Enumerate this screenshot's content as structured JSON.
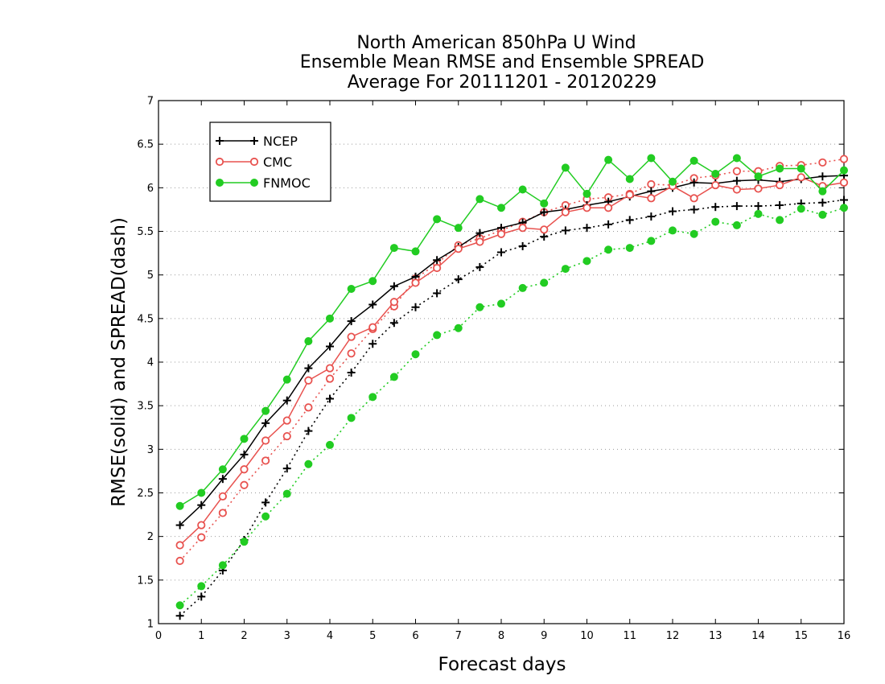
{
  "chart_data": {
    "type": "line",
    "title": [
      "North American 850hPa U Wind",
      "Ensemble Mean RMSE and Ensemble SPREAD",
      "Average For 20111201 - 20120229"
    ],
    "xlabel": "Forecast days",
    "ylabel": "RMSE(solid) and SPREAD(dash)",
    "xlim": [
      0,
      16
    ],
    "ylim": [
      1,
      7
    ],
    "xticks": [
      "0",
      "1",
      "2",
      "3",
      "4",
      "5",
      "6",
      "7",
      "8",
      "9",
      "10",
      "11",
      "12",
      "13",
      "14",
      "15",
      "16"
    ],
    "yticks": [
      "1",
      "1.5",
      "2",
      "2.5",
      "3",
      "3.5",
      "4",
      "4.5",
      "5",
      "5.5",
      "6",
      "6.5",
      "7"
    ],
    "grid": true,
    "legend_position": "top-left",
    "x": [
      0.5,
      1,
      1.5,
      2,
      2.5,
      3,
      3.5,
      4,
      4.5,
      5,
      5.5,
      6,
      6.5,
      7,
      7.5,
      8,
      8.5,
      9,
      9.5,
      10,
      10.5,
      11,
      11.5,
      12,
      12.5,
      13,
      13.5,
      14,
      14.5,
      15,
      15.5,
      16
    ],
    "series": [
      {
        "name": "NCEP",
        "color": "#000000",
        "marker": "plus",
        "rmse": [
          2.13,
          2.36,
          2.66,
          2.94,
          3.3,
          3.56,
          3.93,
          4.18,
          4.47,
          4.66,
          4.87,
          4.98,
          5.17,
          5.32,
          5.48,
          5.54,
          5.6,
          5.72,
          5.75,
          5.8,
          5.84,
          5.9,
          5.96,
          6.0,
          6.06,
          6.05,
          6.08,
          6.09,
          6.07,
          6.1,
          6.13,
          6.14
        ],
        "spread": [
          1.09,
          1.31,
          1.61,
          1.96,
          2.39,
          2.78,
          3.21,
          3.58,
          3.88,
          4.21,
          4.45,
          4.63,
          4.79,
          4.95,
          5.09,
          5.26,
          5.33,
          5.44,
          5.51,
          5.54,
          5.58,
          5.63,
          5.67,
          5.73,
          5.75,
          5.78,
          5.79,
          5.79,
          5.8,
          5.82,
          5.83,
          5.86
        ]
      },
      {
        "name": "CMC",
        "color": "#e8524f",
        "marker": "circle-open",
        "rmse": [
          1.9,
          2.13,
          2.46,
          2.77,
          3.1,
          3.33,
          3.79,
          3.93,
          4.29,
          4.4,
          4.69,
          4.91,
          5.08,
          5.3,
          5.38,
          5.47,
          5.54,
          5.52,
          5.72,
          5.77,
          5.77,
          5.92,
          5.88,
          6.02,
          5.88,
          6.03,
          5.98,
          5.99,
          6.03,
          6.12,
          6.02,
          6.06
        ],
        "spread": [
          1.72,
          1.99,
          2.27,
          2.59,
          2.87,
          3.15,
          3.48,
          3.81,
          4.1,
          4.38,
          4.64,
          4.96,
          5.13,
          5.34,
          5.42,
          5.51,
          5.61,
          5.72,
          5.8,
          5.87,
          5.89,
          5.93,
          6.04,
          6.03,
          6.11,
          6.14,
          6.19,
          6.19,
          6.25,
          6.26,
          6.29,
          6.33
        ]
      },
      {
        "name": "FNMOC",
        "color": "#22cc22",
        "marker": "circle-filled",
        "rmse": [
          2.35,
          2.5,
          2.77,
          3.12,
          3.44,
          3.8,
          4.24,
          4.5,
          4.84,
          4.93,
          5.31,
          5.27,
          5.64,
          5.54,
          5.87,
          5.77,
          5.98,
          5.82,
          6.23,
          5.93,
          6.32,
          6.1,
          6.34,
          6.07,
          6.31,
          6.16,
          6.34,
          6.13,
          6.22,
          6.22,
          5.96,
          6.2
        ],
        "spread": [
          1.21,
          1.43,
          1.67,
          1.94,
          2.23,
          2.49,
          2.83,
          3.05,
          3.36,
          3.6,
          3.83,
          4.09,
          4.31,
          4.39,
          4.63,
          4.67,
          4.85,
          4.91,
          5.07,
          5.16,
          5.29,
          5.31,
          5.39,
          5.51,
          5.47,
          5.61,
          5.57,
          5.7,
          5.63,
          5.76,
          5.69,
          5.77
        ]
      }
    ]
  }
}
